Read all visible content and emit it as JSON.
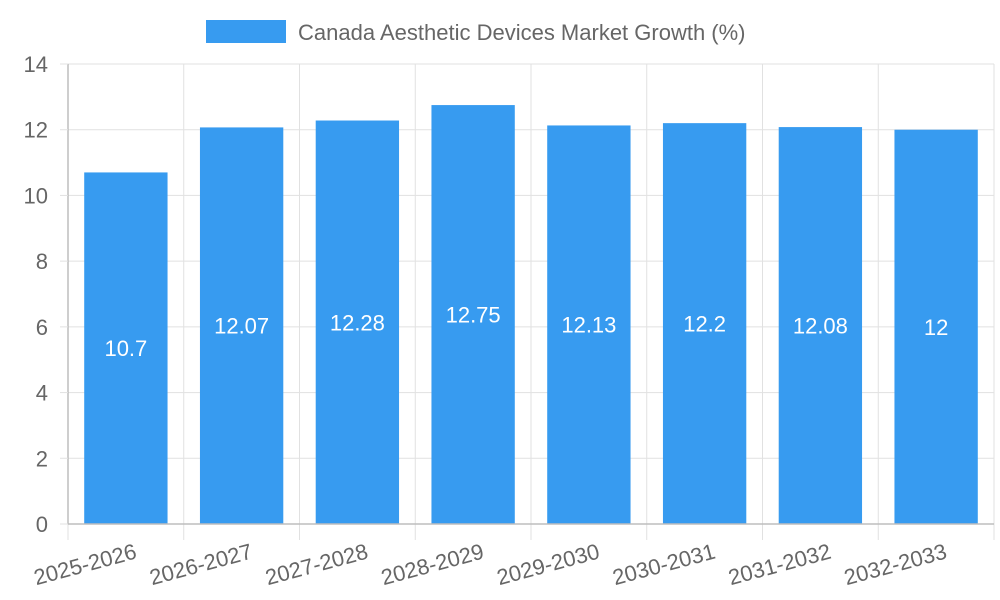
{
  "chart_data": {
    "type": "bar",
    "title": "",
    "xlabel": "",
    "ylabel": "",
    "categories": [
      "2025-2026",
      "2026-2027",
      "2027-2028",
      "2028-2029",
      "2029-2030",
      "2030-2031",
      "2031-2032",
      "2032-2033"
    ],
    "series": [
      {
        "name": "Canada Aesthetic Devices Market Growth (%)",
        "values": [
          10.7,
          12.07,
          12.28,
          12.75,
          12.13,
          12.2,
          12.08,
          12
        ],
        "color": "#379bf0"
      }
    ],
    "ylim": [
      0,
      14
    ],
    "yticks": [
      0,
      2,
      4,
      6,
      8,
      10,
      12,
      14
    ],
    "grid": true,
    "legend_position": "top",
    "data_labels": [
      "10.7",
      "12.07",
      "12.28",
      "12.75",
      "12.13",
      "12.2",
      "12.08",
      "12"
    ]
  }
}
